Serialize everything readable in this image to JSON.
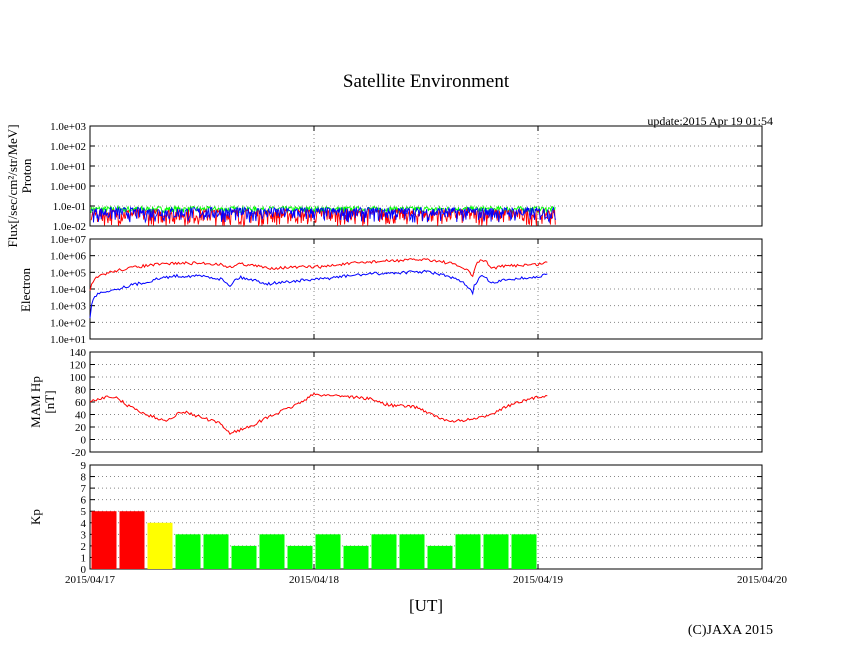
{
  "title": "Satellite Environment",
  "update_text": "update:2015 Apr 19 01:54",
  "copyright": "(C)JAXA 2015",
  "x_axis": {
    "label": "[UT]",
    "range": [
      "2015-04-17T00:00",
      "2015-04-20T00:00"
    ],
    "ticks": [
      "2015/04/17",
      "2015/04/18",
      "2015/04/19",
      "2015/04/20"
    ],
    "grid": "dotted"
  },
  "colors": {
    "red": "#ff0000",
    "blue": "#0000ff",
    "green": "#00ff00",
    "yellow": "#ffff00",
    "grid": "#888888"
  },
  "chart_data": [
    {
      "type": "line",
      "name": "proton",
      "ylabel_lines": [
        "Flux[/sec/cm²/str/MeV]",
        "Proton"
      ],
      "yscale": "log",
      "ylim": [
        0.01,
        1000
      ],
      "yticks": [
        "1.0e-02",
        "1.0e-01",
        "1.0e+00",
        "1.0e+01",
        "1.0e+02",
        "1.0e+03"
      ],
      "x_end": "2015-04-19T01:54",
      "series": [
        {
          "color": "#00ff00",
          "level": 0.07,
          "noise": [
            0.045,
            0.095
          ]
        },
        {
          "color": "#ff0000",
          "level": 0.04,
          "noise": [
            0.01,
            0.07
          ]
        },
        {
          "color": "#0000ff",
          "level": 0.05,
          "noise": [
            0.015,
            0.085
          ]
        }
      ]
    },
    {
      "type": "line",
      "name": "electron",
      "ylabel_lines": [
        "Electron"
      ],
      "yscale": "log",
      "ylim": [
        10,
        10000000
      ],
      "yticks": [
        "1.0e+01",
        "1.0e+02",
        "1.0e+03",
        "1.0e+04",
        "1.0e+05",
        "1.0e+06",
        "1.0e+07"
      ],
      "series": [
        {
          "color": "#ff0000",
          "x": [
            "2015-04-17T00:00",
            "2015-04-17T01:00",
            "2015-04-17T03:00",
            "2015-04-17T06:00",
            "2015-04-17T09:00",
            "2015-04-17T12:00",
            "2015-04-17T14:00",
            "2015-04-17T15:00",
            "2015-04-17T16:00",
            "2015-04-17T19:00",
            "2015-04-17T22:00",
            "2015-04-18T01:00",
            "2015-04-18T06:00",
            "2015-04-18T12:00",
            "2015-04-18T15:00",
            "2015-04-18T17:00",
            "2015-04-18T18:00",
            "2015-04-18T19:00",
            "2015-04-18T21:00",
            "2015-04-19T00:00",
            "2015-04-19T01:00"
          ],
          "values": [
            8000,
            60000,
            130000,
            250000,
            350000,
            350000,
            300000,
            200000,
            330000,
            180000,
            200000,
            220000,
            420000,
            600000,
            300000,
            55000,
            600000,
            180000,
            250000,
            300000,
            400000
          ]
        },
        {
          "color": "#0000ff",
          "x": [
            "2015-04-17T00:00",
            "2015-04-17T01:00",
            "2015-04-17T03:00",
            "2015-04-17T06:00",
            "2015-04-17T09:00",
            "2015-04-17T12:00",
            "2015-04-17T14:00",
            "2015-04-17T15:00",
            "2015-04-17T16:00",
            "2015-04-17T19:00",
            "2015-04-17T22:00",
            "2015-04-18T01:00",
            "2015-04-18T06:00",
            "2015-04-18T12:00",
            "2015-04-18T15:00",
            "2015-04-18T17:00",
            "2015-04-18T18:00",
            "2015-04-18T19:00",
            "2015-04-18T21:00",
            "2015-04-19T00:00",
            "2015-04-19T01:00"
          ],
          "values": [
            200,
            6000,
            10000,
            25000,
            60000,
            60000,
            40000,
            15000,
            50000,
            20000,
            30000,
            40000,
            80000,
            110000,
            40000,
            5000,
            60000,
            20000,
            40000,
            50000,
            80000
          ]
        }
      ]
    },
    {
      "type": "line",
      "name": "mam-hp",
      "ylabel_lines": [
        "MAM Hp",
        "[nT]"
      ],
      "ylim": [
        -20,
        140
      ],
      "yticks": [
        "-20",
        "0",
        "20",
        "40",
        "60",
        "80",
        "100",
        "120",
        "140"
      ],
      "series": [
        {
          "color": "#ff0000",
          "x": [
            "2015-04-17T00:00",
            "2015-04-17T01:00",
            "2015-04-17T02:00",
            "2015-04-17T03:00",
            "2015-04-17T04:00",
            "2015-04-17T06:00",
            "2015-04-17T08:00",
            "2015-04-17T10:00",
            "2015-04-17T12:00",
            "2015-04-17T14:00",
            "2015-04-17T15:00",
            "2015-04-17T17:00",
            "2015-04-17T19:00",
            "2015-04-17T22:00",
            "2015-04-18T00:00",
            "2015-04-18T03:00",
            "2015-04-18T06:00",
            "2015-04-18T08:00",
            "2015-04-18T11:00",
            "2015-04-18T14:00",
            "2015-04-18T16:00",
            "2015-04-18T18:00",
            "2015-04-18T21:00",
            "2015-04-19T00:00",
            "2015-04-19T01:00"
          ],
          "values": [
            60,
            65,
            70,
            65,
            55,
            40,
            30,
            45,
            35,
            25,
            10,
            20,
            35,
            55,
            72,
            70,
            65,
            55,
            52,
            30,
            30,
            35,
            55,
            68,
            70
          ]
        }
      ]
    },
    {
      "type": "bar",
      "name": "kp",
      "ylabel_lines": [
        "Kp"
      ],
      "ylim": [
        0,
        9
      ],
      "yticks": [
        "0",
        "1",
        "2",
        "3",
        "4",
        "5",
        "6",
        "7",
        "8",
        "9"
      ],
      "bin_hours": 3,
      "values": [
        5,
        5,
        4,
        3,
        3,
        2,
        3,
        2,
        3,
        2,
        3,
        3,
        2,
        3,
        3,
        3
      ],
      "bar_colors": [
        "#ff0000",
        "#ff0000",
        "#ffff00",
        "#00ff00",
        "#00ff00",
        "#00ff00",
        "#00ff00",
        "#00ff00",
        "#00ff00",
        "#00ff00",
        "#00ff00",
        "#00ff00",
        "#00ff00",
        "#00ff00",
        "#00ff00",
        "#00ff00"
      ]
    }
  ]
}
